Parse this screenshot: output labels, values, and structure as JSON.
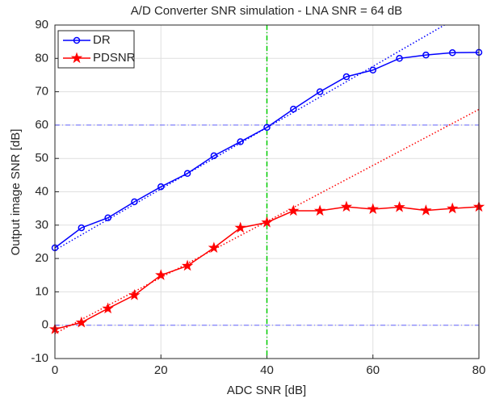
{
  "chart_data": {
    "type": "line",
    "title": "A/D Converter SNR simulation - LNA SNR = 64 dB",
    "x_label": "ADC SNR [dB]",
    "y_label": "Output image SNR [dB]",
    "x": [
      0,
      5,
      10,
      15,
      20,
      25,
      30,
      35,
      40,
      45,
      50,
      55,
      60,
      65,
      70,
      75,
      80
    ],
    "series": [
      {
        "name": "DR",
        "color": "#0000ff",
        "marker": "circle",
        "values": [
          23.2,
          29.2,
          32.2,
          37,
          41.5,
          45.5,
          50.8,
          55,
          59.3,
          64.8,
          70,
          74.5,
          76.5,
          80,
          81,
          81.7,
          81.8
        ]
      },
      {
        "name": "PDSNR",
        "color": "#ff0000",
        "marker": "star",
        "values": [
          -1.2,
          0.8,
          5,
          9,
          15,
          17.8,
          23.2,
          29.2,
          30.8,
          34.3,
          34.3,
          35.5,
          34.8,
          35.4,
          34.4,
          35,
          35.5
        ]
      }
    ],
    "trend_lines": [
      {
        "color": "#0000ff",
        "x": [
          0,
          73.5
        ],
        "values": [
          22.5,
          90
        ]
      },
      {
        "color": "#ff0000",
        "x": [
          0,
          80
        ],
        "values": [
          -2.5,
          64.7
        ]
      }
    ],
    "reference_lines": {
      "y": [
        0,
        60
      ],
      "y_color": "#6666ff",
      "x": [
        40
      ],
      "x_color": "#00cc00"
    },
    "xlim": [
      0,
      80
    ],
    "xticks": [
      0,
      20,
      40,
      60,
      80
    ],
    "ylim": [
      -10,
      90
    ],
    "yticks": [
      -10,
      0,
      10,
      20,
      30,
      40,
      50,
      60,
      70,
      80,
      90
    ],
    "grid": true,
    "legend": "upper-left"
  }
}
